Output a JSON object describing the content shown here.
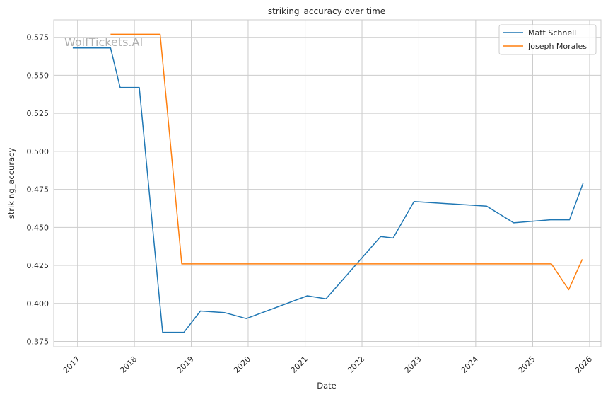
{
  "chart_data": {
    "type": "line",
    "title": "striking_accuracy over time",
    "xlabel": "Date",
    "ylabel": "striking_accuracy",
    "watermark": "WolfTickets.AI",
    "x_ticks": [
      "2017",
      "2018",
      "2019",
      "2020",
      "2021",
      "2022",
      "2023",
      "2024",
      "2025",
      "2026"
    ],
    "y_ticks": [
      "0.375",
      "0.400",
      "0.425",
      "0.450",
      "0.475",
      "0.500",
      "0.525",
      "0.550",
      "0.575"
    ],
    "xlim": [
      "2016-08-01",
      "2026-03-15"
    ],
    "ylim": [
      0.3715,
      0.5865
    ],
    "grid": true,
    "legend_position": "top-right",
    "series": [
      {
        "name": "Matt Schnell",
        "color": "#1f77b4",
        "points": [
          [
            "2016-12-01",
            0.568
          ],
          [
            "2017-08-01",
            0.568
          ],
          [
            "2017-10-01",
            0.542
          ],
          [
            "2018-02-01",
            0.542
          ],
          [
            "2018-07-01",
            0.381
          ],
          [
            "2018-11-15",
            0.381
          ],
          [
            "2019-03-01",
            0.395
          ],
          [
            "2019-08-01",
            0.394
          ],
          [
            "2019-12-20",
            0.39
          ],
          [
            "2021-01-15",
            0.405
          ],
          [
            "2021-05-15",
            0.403
          ],
          [
            "2022-05-01",
            0.444
          ],
          [
            "2022-07-20",
            0.443
          ],
          [
            "2022-12-01",
            0.467
          ],
          [
            "2024-03-10",
            0.464
          ],
          [
            "2024-09-01",
            0.453
          ],
          [
            "2025-04-25",
            0.455
          ],
          [
            "2025-08-25",
            0.455
          ],
          [
            "2025-11-20",
            0.479
          ]
        ]
      },
      {
        "name": "Joseph Morales",
        "color": "#ff7f0e",
        "points": [
          [
            "2017-08-01",
            0.577
          ],
          [
            "2018-06-15",
            0.577
          ],
          [
            "2018-11-01",
            0.426
          ],
          [
            "2025-05-01",
            0.426
          ],
          [
            "2025-08-20",
            0.409
          ],
          [
            "2025-11-15",
            0.429
          ]
        ]
      }
    ]
  }
}
